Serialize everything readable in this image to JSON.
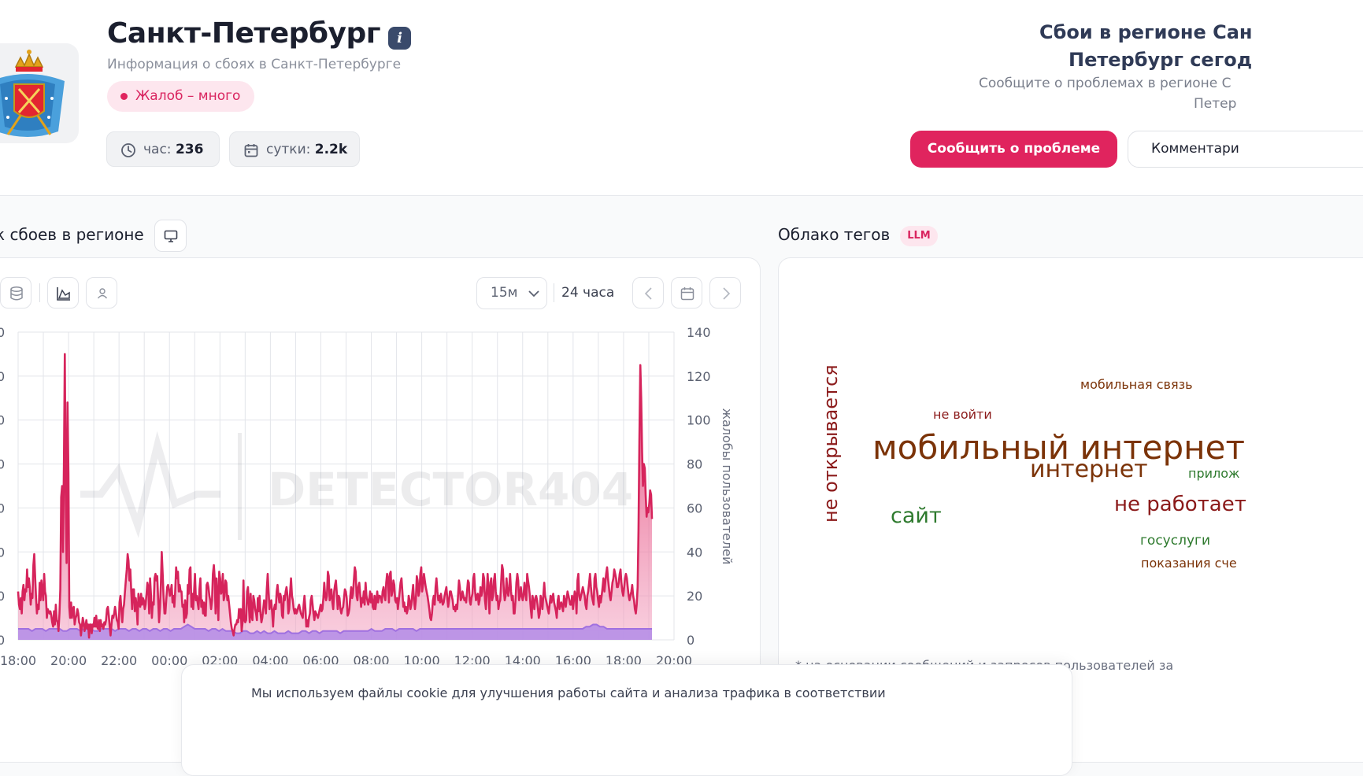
{
  "header": {
    "city": "Санкт-Петербург",
    "subtitle": "Информация о сбоях в Санкт-Петербурге",
    "badge": "Жалоб – много",
    "stats": {
      "hour_label": "час:",
      "hour_value": "236",
      "day_label": "сутки:",
      "day_value": "2.2k"
    },
    "right_title_line1": "Сбои в регионе Сан",
    "right_title_line2": "Петербург сегод",
    "right_sub_line1": "Сообщите о проблемах в регионе С",
    "right_sub_line2": "Петер",
    "report_button": "Сообщить о проблеме",
    "comments_button": "Комментари"
  },
  "chart_section": {
    "title": "к сбоев в регионе",
    "interval": "15м",
    "range": "24 часа"
  },
  "tags_section": {
    "title": "Облако тегов",
    "badge": "LLM",
    "footnote": "* на основании сообщений и запросов пользователей за",
    "tags": [
      {
        "text": "мобильный интернет",
        "color": "#7b3308"
      },
      {
        "text": "интернет",
        "color": "#7b3308"
      },
      {
        "text": "не открывается",
        "color": "#8b1a1a"
      },
      {
        "text": "сайт",
        "color": "#2e7a2e"
      },
      {
        "text": "не работает",
        "color": "#8b1a1a"
      },
      {
        "text": "мобильная связь",
        "color": "#7b3308"
      },
      {
        "text": "не войти",
        "color": "#8b1a1a"
      },
      {
        "text": "прилож",
        "color": "#2e7a2e"
      },
      {
        "text": "госуслуги",
        "color": "#2e7a2e"
      },
      {
        "text": "показания сче",
        "color": "#7b3308"
      }
    ]
  },
  "cookie": {
    "text": "Мы используем файлы cookie для улучшения работы сайта и анализа трафика в соответствии"
  },
  "colors": {
    "accent": "#e0245e",
    "reports_line": "#d6245c",
    "baseline_line": "#a070e0"
  },
  "chart_data": {
    "type": "area",
    "watermark": "DETECTOR404",
    "x_ticks": [
      "18:00",
      "20:00",
      "22:00",
      "00:00",
      "02:00",
      "04:00",
      "06:00",
      "08:00",
      "10:00",
      "12:00",
      "14:00",
      "16:00",
      "18:00",
      "20:00"
    ],
    "left_ticks": [
      "0",
      "0",
      "0",
      "0",
      "0",
      "0",
      "0",
      "0"
    ],
    "right_ticks": [
      "0",
      "20",
      "40",
      "60",
      "80",
      "100",
      "120",
      "140"
    ],
    "ylabel_right": "жалобы пользователей",
    "ylim": [
      0,
      140
    ],
    "series": [
      {
        "values": [
          22,
          16,
          14,
          19,
          12,
          22,
          25,
          18,
          23,
          22,
          32,
          24,
          28,
          24,
          16,
          21,
          19,
          34,
          39,
          28,
          19,
          12,
          16,
          14,
          26,
          18,
          27,
          22,
          18,
          30,
          22,
          20,
          10,
          14,
          13,
          12,
          13,
          11,
          8,
          6,
          13,
          7,
          16,
          9,
          8,
          4,
          12,
          23,
          65,
          70,
          40,
          80,
          130,
          68,
          35,
          108,
          76,
          15,
          10,
          17,
          10,
          14,
          15,
          7,
          10,
          11,
          14,
          12,
          8,
          7,
          2,
          6,
          10,
          8,
          4,
          6,
          9,
          5,
          7,
          1,
          7,
          7,
          3,
          7,
          6,
          10,
          6,
          11,
          6,
          5,
          9,
          4,
          9,
          6,
          7,
          5,
          8,
          7,
          9,
          14,
          15,
          11,
          6,
          2,
          7,
          11,
          10,
          12,
          15,
          12,
          9,
          8,
          5,
          17,
          20,
          14,
          8,
          14,
          16,
          22,
          27,
          32,
          39,
          36,
          27,
          32,
          22,
          14,
          23,
          23,
          13,
          19,
          15,
          7,
          21,
          17,
          15,
          21,
          16,
          19,
          18,
          14,
          16,
          21,
          26,
          24,
          12,
          28,
          20,
          10,
          17,
          16,
          28,
          30,
          27,
          29,
          18,
          8,
          15,
          25,
          40,
          30,
          20,
          12,
          12,
          18,
          24,
          25,
          23,
          20,
          22,
          25,
          17,
          20,
          15,
          22,
          33,
          28,
          31,
          22,
          25,
          22,
          22,
          15,
          16,
          8,
          18,
          10,
          12,
          25,
          21,
          32,
          33,
          15,
          21,
          14,
          22,
          30,
          18,
          20,
          17,
          14,
          23,
          28,
          15,
          18,
          12,
          17,
          11,
          11,
          25,
          26,
          24,
          20,
          18,
          14,
          18,
          30,
          34,
          28,
          12,
          28,
          20,
          9,
          31,
          28,
          21,
          22,
          30,
          18,
          20,
          27,
          26,
          18,
          20,
          16,
          12,
          8,
          5,
          4,
          2,
          5,
          7,
          7,
          9,
          8,
          14,
          10,
          14,
          4,
          8,
          27,
          9,
          8,
          9,
          22,
          24,
          16,
          8,
          21,
          11,
          9,
          20,
          18,
          14,
          12,
          9,
          19,
          13,
          20,
          12,
          8,
          10,
          14,
          18,
          17,
          12,
          23,
          30,
          22,
          14,
          17,
          18,
          12,
          6,
          14,
          16,
          14,
          22,
          25,
          20,
          17,
          21,
          19,
          11,
          10,
          20,
          18,
          22,
          24,
          20,
          12,
          14,
          22,
          28,
          20,
          18,
          14,
          12,
          14,
          12,
          13,
          15,
          16,
          14,
          12,
          11,
          10,
          16,
          20,
          14,
          6,
          9,
          6,
          10,
          12,
          18,
          20,
          16,
          12,
          9,
          13,
          12,
          11,
          10,
          12,
          14,
          16,
          13,
          14,
          19,
          26,
          20,
          18,
          20,
          31,
          29,
          18,
          20,
          23,
          17,
          14,
          22,
          25,
          27,
          21,
          14,
          20,
          19,
          14,
          12,
          14,
          15,
          19,
          23,
          22,
          19,
          11,
          12,
          14,
          20,
          24,
          19,
          21,
          27,
          33,
          31,
          20,
          18,
          24,
          26,
          21,
          15,
          19,
          17,
          22,
          16,
          26,
          20,
          18,
          16,
          18,
          22,
          17,
          21,
          15,
          14,
          20,
          14,
          18,
          22,
          17,
          20,
          20,
          19,
          17,
          22,
          24,
          20,
          18,
          26,
          30,
          28,
          17,
          30,
          31,
          20,
          22,
          27,
          25,
          18,
          17,
          19,
          14,
          18,
          22,
          26,
          28,
          22,
          15,
          17,
          13,
          15,
          12,
          14,
          20,
          18,
          14,
          16,
          21,
          25,
          18,
          14,
          18,
          29,
          27,
          20,
          22,
          30,
          33,
          22,
          25,
          30,
          27,
          24,
          22,
          20,
          17,
          14,
          10,
          9,
          12,
          18,
          20,
          16,
          24,
          28,
          22,
          18,
          20,
          17,
          21,
          18,
          16,
          17,
          20,
          22,
          24,
          19,
          15,
          18,
          22,
          22,
          20,
          18,
          14,
          15,
          13,
          16,
          14,
          20,
          27,
          24,
          18,
          19,
          22,
          20,
          18,
          19,
          17,
          22,
          27,
          26,
          18,
          16,
          19,
          21,
          28,
          30,
          22,
          18,
          20,
          21,
          16,
          18,
          24,
          20,
          22,
          30,
          28,
          18,
          14,
          22,
          30,
          22,
          12,
          26,
          28,
          18,
          20,
          27,
          30,
          22,
          18,
          20,
          14,
          17,
          18,
          26,
          34,
          32,
          22,
          18,
          20,
          28,
          22,
          20,
          24,
          30,
          22,
          18,
          20,
          12,
          12,
          18,
          26,
          30,
          27,
          18,
          20,
          24,
          20,
          18,
          20,
          26,
          22,
          18,
          30,
          27,
          24,
          20,
          14,
          10,
          20,
          17,
          14,
          19,
          20,
          18,
          14,
          10,
          12,
          20,
          18,
          14,
          20,
          26,
          20,
          18,
          16,
          14,
          12,
          16,
          20,
          17,
          19,
          21,
          17,
          15,
          13,
          10,
          18,
          20,
          14,
          16,
          17,
          15,
          13,
          20,
          18,
          15,
          19,
          22,
          20,
          18,
          16,
          16,
          20,
          14,
          18,
          22,
          20,
          12,
          27,
          30,
          20,
          18,
          20,
          22,
          24,
          22,
          20,
          16,
          14,
          20,
          22,
          26,
          30,
          24,
          20,
          18,
          16,
          28,
          30,
          24,
          22,
          18,
          15,
          20,
          17,
          20,
          24,
          28,
          22,
          26,
          30,
          33,
          28,
          24,
          20,
          18,
          22,
          26,
          28,
          32,
          30,
          28,
          24,
          24,
          26,
          30,
          32,
          26,
          22,
          20,
          24,
          28,
          30,
          28,
          24,
          20,
          18,
          20,
          22,
          25,
          20,
          18,
          14,
          12,
          16,
          24,
          50,
          90,
          125,
          110,
          85,
          70,
          80,
          78,
          66,
          56,
          60,
          58,
          62,
          68,
          66,
          55
        ]
      },
      {
        "values": [
          5,
          5,
          5,
          5,
          4,
          5,
          5,
          5,
          4,
          5,
          5,
          5,
          5,
          4,
          4,
          5,
          5,
          5,
          4,
          5,
          5,
          5,
          4,
          4,
          5,
          5,
          5,
          5,
          4,
          5,
          5,
          5,
          4,
          5,
          5,
          4,
          5,
          5,
          4,
          5,
          5,
          4,
          5,
          5,
          4,
          5,
          5,
          5,
          6,
          7,
          6,
          5,
          5,
          5,
          5,
          4,
          5,
          5,
          4,
          5,
          4,
          4,
          4,
          3,
          3,
          4,
          4,
          3,
          3,
          4,
          3,
          4,
          3,
          3,
          4,
          3,
          3,
          3,
          4,
          3,
          3,
          3,
          4,
          4,
          3,
          4,
          4,
          3,
          4,
          4,
          4,
          4,
          4,
          3,
          4,
          4,
          4,
          4,
          4,
          4,
          4,
          4,
          5,
          4,
          4,
          4,
          5,
          5,
          5,
          4,
          5,
          5,
          5,
          5,
          5,
          4,
          5,
          5,
          5,
          5,
          5,
          5,
          5,
          5,
          5,
          5,
          5,
          5,
          5,
          5,
          5,
          5,
          5,
          5,
          5,
          5,
          5,
          5,
          5,
          5,
          5,
          5,
          5,
          5,
          5,
          5,
          5,
          5,
          5,
          5,
          5,
          5,
          5,
          5,
          5,
          5,
          5,
          5,
          5,
          5,
          5,
          5,
          5,
          5,
          6,
          6,
          7,
          7,
          6,
          6,
          5,
          5,
          5,
          5,
          5,
          5,
          5,
          5,
          5,
          5,
          5,
          5,
          5,
          5
        ]
      }
    ]
  }
}
